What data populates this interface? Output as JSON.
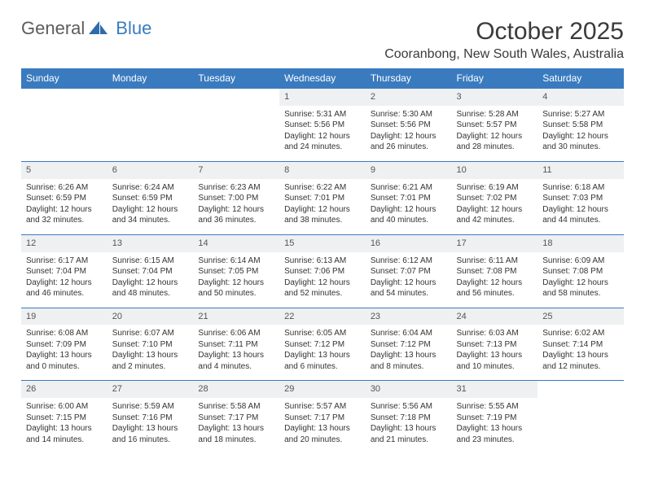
{
  "logo": {
    "part1": "General",
    "part2": "Blue"
  },
  "title": "October 2025",
  "location": "Cooranbong, New South Wales, Australia",
  "colors": {
    "brand_blue": "#3a7bbf",
    "daynum_bg": "#eef0f2",
    "text": "#333333",
    "logo_gray": "#5c5c5c",
    "background": "#ffffff"
  },
  "day_headers": [
    "Sunday",
    "Monday",
    "Tuesday",
    "Wednesday",
    "Thursday",
    "Friday",
    "Saturday"
  ],
  "weeks": [
    [
      null,
      null,
      null,
      {
        "n": "1",
        "sr": "Sunrise: 5:31 AM",
        "ss": "Sunset: 5:56 PM",
        "dl": "Daylight: 12 hours and 24 minutes."
      },
      {
        "n": "2",
        "sr": "Sunrise: 5:30 AM",
        "ss": "Sunset: 5:56 PM",
        "dl": "Daylight: 12 hours and 26 minutes."
      },
      {
        "n": "3",
        "sr": "Sunrise: 5:28 AM",
        "ss": "Sunset: 5:57 PM",
        "dl": "Daylight: 12 hours and 28 minutes."
      },
      {
        "n": "4",
        "sr": "Sunrise: 5:27 AM",
        "ss": "Sunset: 5:58 PM",
        "dl": "Daylight: 12 hours and 30 minutes."
      }
    ],
    [
      {
        "n": "5",
        "sr": "Sunrise: 6:26 AM",
        "ss": "Sunset: 6:59 PM",
        "dl": "Daylight: 12 hours and 32 minutes."
      },
      {
        "n": "6",
        "sr": "Sunrise: 6:24 AM",
        "ss": "Sunset: 6:59 PM",
        "dl": "Daylight: 12 hours and 34 minutes."
      },
      {
        "n": "7",
        "sr": "Sunrise: 6:23 AM",
        "ss": "Sunset: 7:00 PM",
        "dl": "Daylight: 12 hours and 36 minutes."
      },
      {
        "n": "8",
        "sr": "Sunrise: 6:22 AM",
        "ss": "Sunset: 7:01 PM",
        "dl": "Daylight: 12 hours and 38 minutes."
      },
      {
        "n": "9",
        "sr": "Sunrise: 6:21 AM",
        "ss": "Sunset: 7:01 PM",
        "dl": "Daylight: 12 hours and 40 minutes."
      },
      {
        "n": "10",
        "sr": "Sunrise: 6:19 AM",
        "ss": "Sunset: 7:02 PM",
        "dl": "Daylight: 12 hours and 42 minutes."
      },
      {
        "n": "11",
        "sr": "Sunrise: 6:18 AM",
        "ss": "Sunset: 7:03 PM",
        "dl": "Daylight: 12 hours and 44 minutes."
      }
    ],
    [
      {
        "n": "12",
        "sr": "Sunrise: 6:17 AM",
        "ss": "Sunset: 7:04 PM",
        "dl": "Daylight: 12 hours and 46 minutes."
      },
      {
        "n": "13",
        "sr": "Sunrise: 6:15 AM",
        "ss": "Sunset: 7:04 PM",
        "dl": "Daylight: 12 hours and 48 minutes."
      },
      {
        "n": "14",
        "sr": "Sunrise: 6:14 AM",
        "ss": "Sunset: 7:05 PM",
        "dl": "Daylight: 12 hours and 50 minutes."
      },
      {
        "n": "15",
        "sr": "Sunrise: 6:13 AM",
        "ss": "Sunset: 7:06 PM",
        "dl": "Daylight: 12 hours and 52 minutes."
      },
      {
        "n": "16",
        "sr": "Sunrise: 6:12 AM",
        "ss": "Sunset: 7:07 PM",
        "dl": "Daylight: 12 hours and 54 minutes."
      },
      {
        "n": "17",
        "sr": "Sunrise: 6:11 AM",
        "ss": "Sunset: 7:08 PM",
        "dl": "Daylight: 12 hours and 56 minutes."
      },
      {
        "n": "18",
        "sr": "Sunrise: 6:09 AM",
        "ss": "Sunset: 7:08 PM",
        "dl": "Daylight: 12 hours and 58 minutes."
      }
    ],
    [
      {
        "n": "19",
        "sr": "Sunrise: 6:08 AM",
        "ss": "Sunset: 7:09 PM",
        "dl": "Daylight: 13 hours and 0 minutes."
      },
      {
        "n": "20",
        "sr": "Sunrise: 6:07 AM",
        "ss": "Sunset: 7:10 PM",
        "dl": "Daylight: 13 hours and 2 minutes."
      },
      {
        "n": "21",
        "sr": "Sunrise: 6:06 AM",
        "ss": "Sunset: 7:11 PM",
        "dl": "Daylight: 13 hours and 4 minutes."
      },
      {
        "n": "22",
        "sr": "Sunrise: 6:05 AM",
        "ss": "Sunset: 7:12 PM",
        "dl": "Daylight: 13 hours and 6 minutes."
      },
      {
        "n": "23",
        "sr": "Sunrise: 6:04 AM",
        "ss": "Sunset: 7:12 PM",
        "dl": "Daylight: 13 hours and 8 minutes."
      },
      {
        "n": "24",
        "sr": "Sunrise: 6:03 AM",
        "ss": "Sunset: 7:13 PM",
        "dl": "Daylight: 13 hours and 10 minutes."
      },
      {
        "n": "25",
        "sr": "Sunrise: 6:02 AM",
        "ss": "Sunset: 7:14 PM",
        "dl": "Daylight: 13 hours and 12 minutes."
      }
    ],
    [
      {
        "n": "26",
        "sr": "Sunrise: 6:00 AM",
        "ss": "Sunset: 7:15 PM",
        "dl": "Daylight: 13 hours and 14 minutes."
      },
      {
        "n": "27",
        "sr": "Sunrise: 5:59 AM",
        "ss": "Sunset: 7:16 PM",
        "dl": "Daylight: 13 hours and 16 minutes."
      },
      {
        "n": "28",
        "sr": "Sunrise: 5:58 AM",
        "ss": "Sunset: 7:17 PM",
        "dl": "Daylight: 13 hours and 18 minutes."
      },
      {
        "n": "29",
        "sr": "Sunrise: 5:57 AM",
        "ss": "Sunset: 7:17 PM",
        "dl": "Daylight: 13 hours and 20 minutes."
      },
      {
        "n": "30",
        "sr": "Sunrise: 5:56 AM",
        "ss": "Sunset: 7:18 PM",
        "dl": "Daylight: 13 hours and 21 minutes."
      },
      {
        "n": "31",
        "sr": "Sunrise: 5:55 AM",
        "ss": "Sunset: 7:19 PM",
        "dl": "Daylight: 13 hours and 23 minutes."
      },
      null
    ]
  ]
}
